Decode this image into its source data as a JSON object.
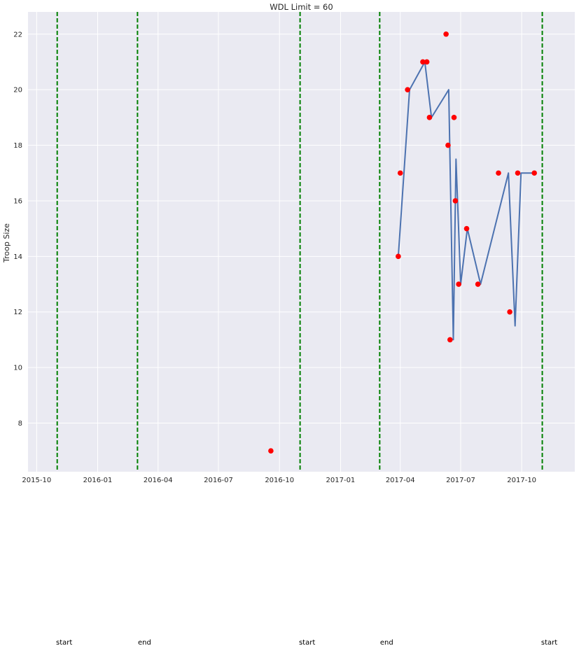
{
  "chart_data": {
    "type": "line",
    "title": "WDL Limit = 60",
    "xlabel": "",
    "ylabel": "Troop Size",
    "grid": true,
    "xlim": [
      "2015-09-18",
      "2017-12-20"
    ],
    "ylim": [
      6.25,
      22.8
    ],
    "x_ticks": [
      "2015-10-01",
      "2016-01-01",
      "2016-04-01",
      "2016-07-01",
      "2016-10-01",
      "2017-01-01",
      "2017-04-01",
      "2017-07-01",
      "2017-10-01"
    ],
    "x_tick_labels": [
      "2015-10",
      "2016-01",
      "2016-04",
      "2016-07",
      "2016-10",
      "2017-01",
      "2017-04",
      "2017-07",
      "2017-10"
    ],
    "y_ticks": [
      8,
      10,
      12,
      14,
      16,
      18,
      20,
      22
    ],
    "y_tick_labels": [
      "8",
      "10",
      "12",
      "14",
      "16",
      "18",
      "20",
      "22"
    ],
    "line_series": {
      "color": "#4c72b0",
      "points": [
        {
          "x": "2017-03-29",
          "y": 14
        },
        {
          "x": "2017-04-15",
          "y": 20
        },
        {
          "x": "2017-05-08",
          "y": 21
        },
        {
          "x": "2017-05-18",
          "y": 19
        },
        {
          "x": "2017-06-13",
          "y": 20
        },
        {
          "x": "2017-06-20",
          "y": 11
        },
        {
          "x": "2017-06-24",
          "y": 17.5
        },
        {
          "x": "2017-07-01",
          "y": 13
        },
        {
          "x": "2017-07-11",
          "y": 15
        },
        {
          "x": "2017-07-31",
          "y": 13
        },
        {
          "x": "2017-09-11",
          "y": 17
        },
        {
          "x": "2017-09-21",
          "y": 11.5
        },
        {
          "x": "2017-09-30",
          "y": 17
        },
        {
          "x": "2017-10-23",
          "y": 17
        }
      ]
    },
    "scatter_series": {
      "color": "#ff0000",
      "points": [
        {
          "x": "2016-09-18",
          "y": 7
        },
        {
          "x": "2017-03-29",
          "y": 14
        },
        {
          "x": "2017-04-01",
          "y": 17
        },
        {
          "x": "2017-04-12",
          "y": 20
        },
        {
          "x": "2017-05-05",
          "y": 21
        },
        {
          "x": "2017-05-11",
          "y": 21
        },
        {
          "x": "2017-05-15",
          "y": 19
        },
        {
          "x": "2017-06-09",
          "y": 22
        },
        {
          "x": "2017-06-12",
          "y": 18
        },
        {
          "x": "2017-06-15",
          "y": 11
        },
        {
          "x": "2017-06-21",
          "y": 19
        },
        {
          "x": "2017-06-23",
          "y": 16
        },
        {
          "x": "2017-06-28",
          "y": 13
        },
        {
          "x": "2017-07-10",
          "y": 15
        },
        {
          "x": "2017-07-27",
          "y": 13
        },
        {
          "x": "2017-08-27",
          "y": 17
        },
        {
          "x": "2017-09-13",
          "y": 12
        },
        {
          "x": "2017-09-25",
          "y": 17
        },
        {
          "x": "2017-10-20",
          "y": 17
        }
      ]
    },
    "vlines": {
      "color": "#008000",
      "style": "dashed",
      "dates": [
        "2015-11-01",
        "2016-03-01",
        "2016-11-01",
        "2017-03-01",
        "2017-11-01"
      ]
    },
    "event_labels": [
      {
        "x": "2015-11-01",
        "text": "start"
      },
      {
        "x": "2016-03-01",
        "text": "end"
      },
      {
        "x": "2016-11-01",
        "text": "start"
      },
      {
        "x": "2017-03-01",
        "text": "end"
      },
      {
        "x": "2017-11-01",
        "text": "start"
      }
    ]
  }
}
